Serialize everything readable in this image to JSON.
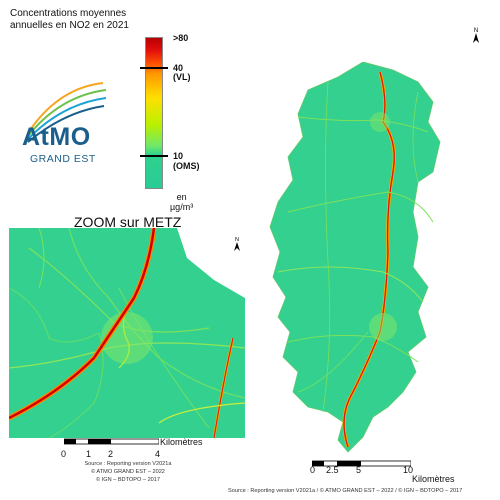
{
  "title": {
    "line1": "Concentrations moyennes",
    "line2": "annuelles en NO2 en 2021"
  },
  "logo": {
    "word": "AtMO",
    "sub": "GRAND EST"
  },
  "legend": {
    "max_label": ">80",
    "vl_value": "40",
    "vl_label": "(VL)",
    "oms_value": "10",
    "oms_label": "(OMS)",
    "unit_line1": "en",
    "unit_line2": "µg/m³",
    "colors": {
      "max": "#b80000",
      "high": "#ff5a00",
      "mid": "#ffe000",
      "low": "#b9f000",
      "min": "#29cc96"
    }
  },
  "zoom": {
    "title": "ZOOM sur METZ",
    "north": "N",
    "scalebar": {
      "ticks": [
        "0",
        "1",
        "2",
        "4"
      ],
      "unit": "Kilomètres"
    }
  },
  "main_map": {
    "north": "N",
    "scalebar": {
      "ticks": [
        "0",
        "2.5",
        "5",
        "10"
      ],
      "unit": "Kilomètres"
    }
  },
  "credits": {
    "line1": "Source : Reporting version V2021a",
    "line2": "© ATMO GRAND EST – 2022",
    "line3": "© IGN – BDTOPO – 2017"
  },
  "source": "Source : Reporting version V2021a / © ATMO GRAND EST – 2022 / © IGN – BDTOPO – 2017"
}
